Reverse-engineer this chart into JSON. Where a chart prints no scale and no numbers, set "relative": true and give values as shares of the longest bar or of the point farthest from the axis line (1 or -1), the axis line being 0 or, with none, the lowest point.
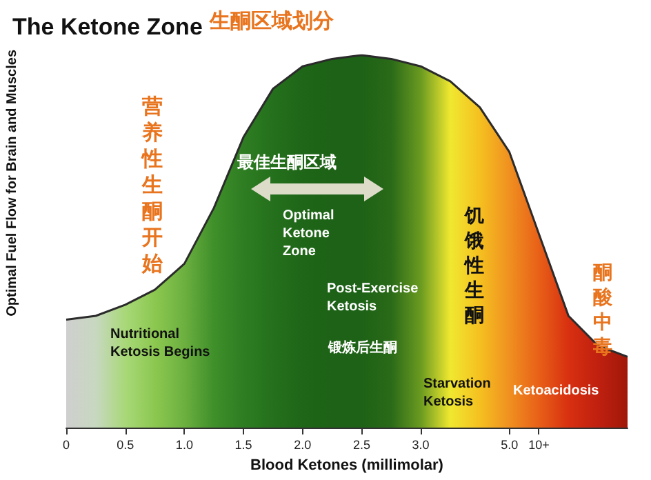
{
  "chart_data": {
    "type": "area",
    "title": "The Ketone Zone",
    "subtitle": "生酮区域划分",
    "xlabel": "Blood Ketones (millimolar)",
    "ylabel": "Optimal Fuel Flow for Brain and Muscles",
    "relative": true,
    "marker": "none",
    "categories": [
      "0",
      null,
      "0.5",
      null,
      "1.0",
      null,
      "1.5",
      null,
      "2.0",
      null,
      "2.5",
      null,
      "3.0",
      null,
      null,
      "5.0",
      "10+",
      null,
      null,
      null
    ],
    "series": [
      {
        "color": "#2b2b2b",
        "values": [
          0.29,
          0.3,
          0.33,
          0.37,
          0.44,
          0.59,
          0.78,
          0.91,
          0.97,
          0.99,
          1,
          0.99,
          0.97,
          0.93,
          0.86,
          0.74,
          0.52,
          0.3,
          0.22,
          0.19
        ],
        "colors": [
          "#cfcfcf",
          "#c8d8c0",
          "#a8d878",
          "#8cc850",
          "#6cb040",
          "#3f8f2a",
          "#2e7d22",
          "#24701c",
          "#1f6618",
          "#1d6216",
          "#1d6216",
          "#2a6a18",
          "#6a9a20",
          "#f0e830",
          "#f5c020",
          "#f09020",
          "#e86018",
          "#d83010",
          "#c02010",
          "#a01808"
        ]
      }
    ],
    "annotations": [
      "营养性生酮开始",
      "最佳生酮区域",
      "Optimal Ketone Zone",
      "Nutritional Ketosis Begins",
      "Post-Exercise Ketosis",
      "锻炼后生酮",
      "饥饿性生酮",
      "Starvation Ketosis",
      "Ketoacidosis",
      "酮酸中毒"
    ]
  }
}
